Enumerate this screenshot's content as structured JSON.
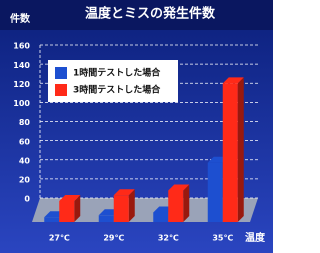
{
  "chart_data": {
    "type": "bar3d",
    "title": "温度とミスの発生件数",
    "y_label": "件数",
    "x_label": "温度",
    "categories": [
      "27℃",
      "29℃",
      "32℃",
      "35℃"
    ],
    "series": [
      {
        "name": "1時間テストした場合",
        "color": "#1d4fd0",
        "values": [
          5,
          7,
          10,
          62
        ]
      },
      {
        "name": "3時間テストした場合",
        "color": "#ff2a18",
        "values": [
          22,
          28,
          33,
          145
        ]
      }
    ],
    "ylim": [
      0,
      160
    ],
    "yticks": [
      0,
      20,
      40,
      60,
      80,
      100,
      120,
      140,
      160
    ],
    "grid": true
  }
}
